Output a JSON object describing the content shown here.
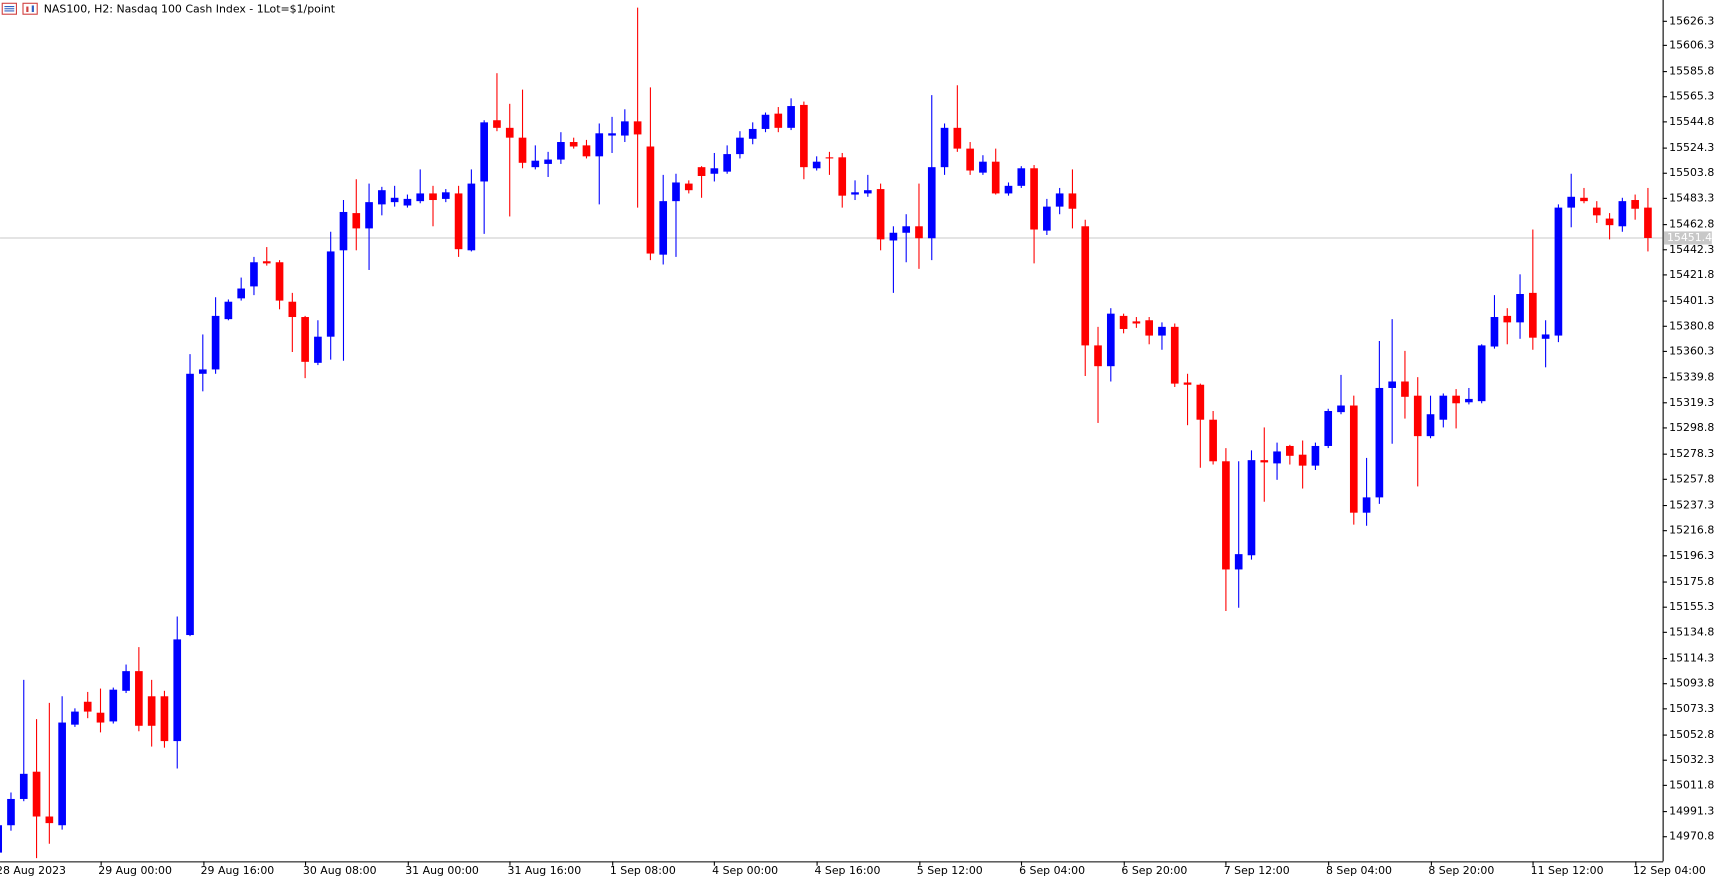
{
  "chart_data": {
    "type": "candlestick",
    "title": "NAS100, H2:  Nasdaq 100 Cash Index - 1Lot=$1/point",
    "categories": [
      "28 Aug 2023",
      null,
      null,
      null,
      null,
      null,
      null,
      null,
      "29 Aug 00:00",
      null,
      null,
      null,
      null,
      null,
      null,
      null,
      "29 Aug 16:00",
      null,
      null,
      null,
      null,
      null,
      null,
      null,
      "30 Aug 08:00",
      null,
      null,
      null,
      null,
      null,
      null,
      null,
      "31 Aug 00:00",
      null,
      null,
      null,
      null,
      null,
      null,
      null,
      "31 Aug 16:00",
      null,
      null,
      null,
      null,
      null,
      null,
      null,
      "1 Sep 08:00",
      null,
      null,
      null,
      null,
      null,
      null,
      null,
      "4 Sep 00:00",
      null,
      null,
      null,
      null,
      null,
      null,
      null,
      "4 Sep 16:00",
      null,
      null,
      null,
      null,
      null,
      null,
      null,
      "5 Sep 12:00",
      null,
      null,
      null,
      null,
      null,
      null,
      null,
      "6 Sep 04:00",
      null,
      null,
      null,
      null,
      null,
      null,
      null,
      "6 Sep 20:00",
      null,
      null,
      null,
      null,
      null,
      null,
      null,
      "7 Sep 12:00",
      null,
      null,
      null,
      null,
      null,
      null,
      null,
      "8 Sep 04:00",
      null,
      null,
      null,
      null,
      null,
      null,
      null,
      "8 Sep 20:00",
      null,
      null,
      null,
      null,
      null,
      null,
      null,
      "11 Sep 12:00",
      null,
      null,
      null,
      null,
      null,
      null,
      null,
      "12 Sep 04:00",
      null
    ],
    "open": [
      14957.6,
      14979.6,
      15000.7,
      15022.6,
      14986.6,
      14979.6,
      15060.4,
      15078.8,
      15070.0,
      15063.0,
      15087.6,
      15103.4,
      15083.2,
      15083.2,
      15047.2,
      15132.4,
      15342.3,
      15345.8,
      15386.2,
      15402.9,
      15412.5,
      15432.7,
      15431.9,
      15400.2,
      15387.9,
      15351.1,
      15372.1,
      15441.5,
      15471.4,
      15459.1,
      15478.4,
      15480.2,
      15477.5,
      15481.0,
      15487.2,
      15482.8,
      15487.2,
      15441.5,
      15496.8,
      15546.0,
      15539.9,
      15532.0,
      15508.3,
      15510.9,
      15514.4,
      15528.5,
      15525.8,
      15517.0,
      15533.7,
      15533.7,
      15545.1,
      15524.9,
      15438.0,
      15481.0,
      15495.1,
      15508.3,
      15503.0,
      15504.7,
      15518.8,
      15531.1,
      15539.0,
      15551.3,
      15539.9,
      15558.3,
      15507.4,
      15516.2,
      15516.2,
      15486.3,
      15487.2,
      15490.7,
      15449.4,
      15455.6,
      15460.8,
      15451.2,
      15508.3,
      15539.9,
      15523.2,
      15503.9,
      15512.7,
      15487.2,
      15493.3,
      15507.4,
      15457.3,
      15476.6,
      15487.2,
      15460.8,
      15365.1,
      15348.4,
      15388.8,
      15384.4,
      15385.3,
      15373.0,
      15380.0,
      15335.3,
      15333.5,
      15305.4,
      15272.0,
      15185.1,
      15196.5,
      15272.9,
      15270.3,
      15284.3,
      15277.3,
      15268.5,
      15284.3,
      15311.5,
      15316.8,
      15230.7,
      15243.0,
      15330.9,
      15336.1,
      15324.7,
      15292.2,
      15305.4,
      15324.7,
      15319.4,
      15320.3,
      15364.2,
      15388.8,
      15383.6,
      15407.3,
      15370.4,
      15373.0,
      15475.8,
      15483.7,
      15475.8,
      15467.0,
      15460.8,
      15481.9,
      15475.8
    ],
    "high": [
      14982.2,
      15005.9,
      15096.4,
      15064.8,
      15077.9,
      15083.2,
      15073.5,
      15086.7,
      15089.4,
      15090.2,
      15108.7,
      15122.7,
      15096.4,
      15087.6,
      15147.3,
      15358.1,
      15373.9,
      15403.8,
      15402.0,
      15419.6,
      15436.2,
      15444.1,
      15433.6,
      15407.3,
      15388.8,
      15385.3,
      15456.4,
      15481.9,
      15498.6,
      15495.1,
      15492.5,
      15493.3,
      15486.3,
      15506.5,
      15493.3,
      15490.7,
      15493.3,
      15506.5,
      15546.0,
      15583.8,
      15559.2,
      15570.6,
      15525.8,
      15520.6,
      15536.4,
      15532.0,
      15530.2,
      15543.4,
      15548.7,
      15554.8,
      15636.5,
      15572.4,
      15502.1,
      15503.0,
      15497.7,
      15509.1,
      15519.7,
      15525.8,
      15537.2,
      15544.3,
      15552.2,
      15556.6,
      15563.6,
      15561.0,
      15517.0,
      15520.6,
      15519.7,
      15497.7,
      15502.1,
      15495.1,
      15460.8,
      15470.5,
      15495.1,
      15566.2,
      15543.4,
      15574.1,
      15528.5,
      15517.9,
      15523.2,
      15496.0,
      15509.1,
      15510.0,
      15482.8,
      15491.6,
      15506.5,
      15466.1,
      15380.0,
      15395.0,
      15390.6,
      15387.9,
      15387.9,
      15383.6,
      15382.7,
      15342.3,
      15334.4,
      15312.4,
      15282.6,
      15272.0,
      15280.8,
      15299.2,
      15287.0,
      15285.2,
      15288.7,
      15287.0,
      15314.2,
      15341.4,
      15324.7,
      15274.7,
      15368.6,
      15386.2,
      15360.7,
      15339.6,
      15324.7,
      15326.5,
      15330.0,
      15330.9,
      15366.0,
      15405.5,
      15395.0,
      15422.2,
      15458.2,
      15385.3,
      15478.4,
      15503.0,
      15491.6,
      15481.0,
      15471.4,
      15483.7,
      15486.3,
      15491.6
    ],
    "low": [
      14953.2,
      14975.2,
      14998.9,
      14953.2,
      14964.7,
      14976.1,
      15058.6,
      15065.6,
      15054.2,
      15061.3,
      15085.8,
      15055.1,
      15042.8,
      15041.9,
      15025.2,
      15131.5,
      15328.2,
      15342.3,
      15385.3,
      15401.1,
      15405.5,
      15429.2,
      15394.1,
      15359.8,
      15338.8,
      15349.3,
      15353.7,
      15352.8,
      15441.5,
      15425.7,
      15469.6,
      15476.6,
      15475.8,
      15479.3,
      15460.8,
      15480.2,
      15436.2,
      15440.6,
      15454.7,
      15537.2,
      15468.7,
      15507.4,
      15506.5,
      15500.4,
      15510.9,
      15523.2,
      15515.3,
      15478.4,
      15519.7,
      15528.5,
      15475.8,
      15433.6,
      15430.1,
      15436.2,
      15487.2,
      15483.7,
      15496.8,
      15503.0,
      15515.3,
      15526.7,
      15536.4,
      15536.4,
      15538.1,
      15498.6,
      15505.6,
      15502.1,
      15475.8,
      15481.9,
      15484.5,
      15441.5,
      15407.3,
      15431.9,
      15426.6,
      15433.6,
      15502.1,
      15520.6,
      15502.1,
      15502.1,
      15486.3,
      15485.4,
      15491.6,
      15431.0,
      15453.8,
      15470.5,
      15459.1,
      15340.5,
      15302.8,
      15336.1,
      15374.8,
      15379.2,
      15366.0,
      15361.6,
      15331.7,
      15301.0,
      15266.8,
      15269.4,
      15151.7,
      15154.3,
      15193.0,
      15239.5,
      15257.1,
      15269.4,
      15250.1,
      15265.0,
      15282.6,
      15309.8,
      15221.1,
      15220.2,
      15237.8,
      15286.1,
      15306.3,
      15251.8,
      15290.5,
      15299.2,
      15298.4,
      15317.7,
      15318.6,
      15362.5,
      15366.0,
      15370.4,
      15361.6,
      15347.5,
      15367.7,
      15460.0,
      15479.3,
      15463.5,
      15450.3,
      15456.4,
      15466.1,
      15440.6
    ],
    "close": [
      14979.6,
      15000.7,
      15020.9,
      14986.6,
      14981.3,
      15062.1,
      15070.9,
      15070.9,
      15062.1,
      15088.5,
      15103.4,
      15059.5,
      15059.5,
      15047.2,
      15128.9,
      15342.3,
      15345.8,
      15388.8,
      15400.2,
      15410.8,
      15431.9,
      15431.0,
      15401.1,
      15387.9,
      15351.9,
      15372.1,
      15440.6,
      15472.3,
      15459.1,
      15480.2,
      15489.8,
      15483.7,
      15482.8,
      15487.2,
      15481.9,
      15488.1,
      15442.4,
      15495.1,
      15544.3,
      15539.9,
      15532.0,
      15511.8,
      15513.5,
      15514.4,
      15528.5,
      15524.9,
      15517.0,
      15535.5,
      15535.5,
      15545.1,
      15534.6,
      15438.9,
      15481.0,
      15496.0,
      15489.8,
      15501.2,
      15507.4,
      15518.8,
      15532.0,
      15539.0,
      15550.4,
      15539.9,
      15557.4,
      15508.3,
      15512.7,
      15515.3,
      15485.4,
      15488.1,
      15489.8,
      15450.3,
      15455.6,
      15460.8,
      15451.2,
      15508.3,
      15539.9,
      15523.2,
      15505.6,
      15512.7,
      15487.2,
      15493.3,
      15507.4,
      15458.2,
      15476.6,
      15487.2,
      15474.9,
      15365.1,
      15348.4,
      15390.6,
      15378.3,
      15382.7,
      15373.0,
      15380.0,
      15334.4,
      15333.5,
      15305.4,
      15272.0,
      15185.1,
      15197.4,
      15272.9,
      15271.1,
      15279.9,
      15276.4,
      15268.5,
      15284.3,
      15312.4,
      15316.8,
      15230.7,
      15243.0,
      15330.9,
      15336.1,
      15323.8,
      15292.2,
      15309.8,
      15324.7,
      15318.6,
      15322.1,
      15365.1,
      15387.9,
      15383.6,
      15406.4,
      15371.3,
      15373.9,
      15475.8,
      15484.5,
      15481.0,
      15469.6,
      15461.7,
      15481.0,
      15474.9,
      15451.4
    ],
    "up_color": "#0000ff",
    "down_color": "#ff0000",
    "last_price": 15451.4,
    "ylim": [
      14950.6,
      15642.6
    ],
    "yticks": [
      15626.3,
      15606.3,
      15585.8,
      15565.3,
      15544.8,
      15524.3,
      15503.8,
      15483.3,
      15462.8,
      15442.3,
      15421.8,
      15401.3,
      15380.8,
      15360.3,
      15339.8,
      15319.3,
      15298.8,
      15278.3,
      15257.8,
      15237.3,
      15216.8,
      15196.3,
      15175.8,
      15155.3,
      15134.8,
      15114.3,
      15093.8,
      15073.3,
      15052.8,
      15032.3,
      15011.8,
      14991.3,
      14970.8
    ],
    "grid": false
  }
}
